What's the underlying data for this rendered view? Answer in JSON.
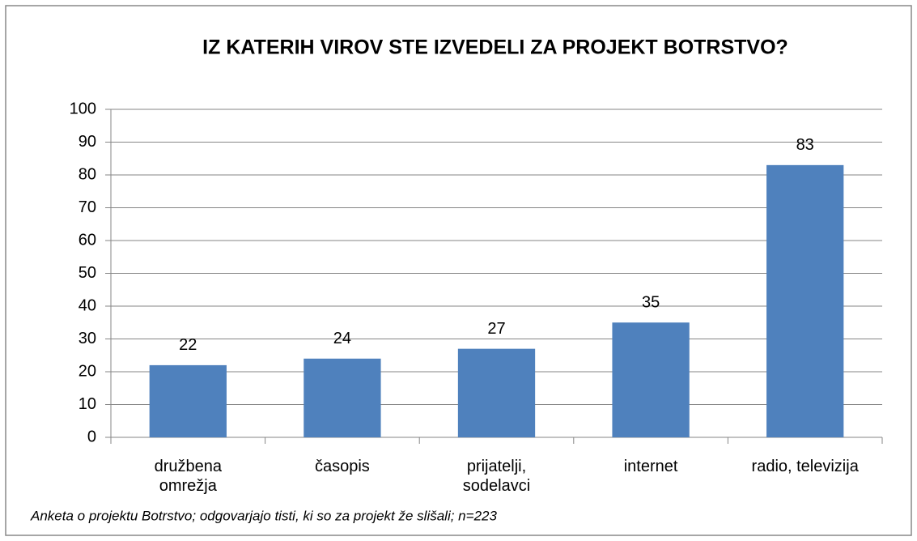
{
  "chart_data": {
    "type": "bar",
    "title": "IZ KATERIH VIROV STE IZVEDELI ZA PROJEKT BOTRSTVO?",
    "categories": [
      "družbena\nomrežja",
      "časopis",
      "prijatelji,\nsodelavci",
      "internet",
      "radio, televizija"
    ],
    "values": [
      22,
      24,
      27,
      35,
      83
    ],
    "color": "#4f81bd",
    "ylim": [
      0,
      100
    ],
    "yticks": [
      0,
      10,
      20,
      30,
      40,
      50,
      60,
      70,
      80,
      90,
      100
    ],
    "grid": true,
    "note": "Anketa o projektu Botrstvo; odgovarjajo tisti, ki so za projekt že slišali;  n=223"
  }
}
